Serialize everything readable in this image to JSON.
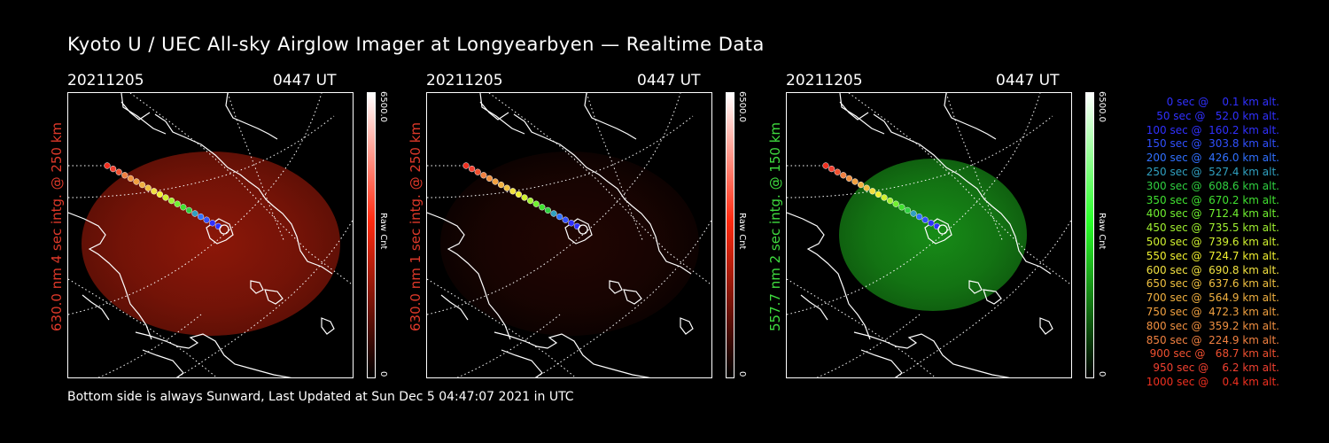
{
  "title": "Kyoto U / UEC All-sky Airglow Imager at Longyearbyen — Realtime Data",
  "footer": "Bottom side is always Sunward, Last Updated at Sun Dec  5 04:47:07 2021 in UTC",
  "panels": [
    {
      "date": "20211205",
      "time": "0447 UT",
      "label": "630.0 nm 4 sec intg. @ 250 km",
      "label_color": "#e0392a",
      "cbar_max": "6500.0",
      "cbar_min": "0",
      "cbar_unit": "Raw Cnt",
      "color": "#ff2a10",
      "intensity": "strong"
    },
    {
      "date": "20211205",
      "time": "0447 UT",
      "label": "630.0 nm 1 sec intg. @ 250 km",
      "label_color": "#e0392a",
      "cbar_max": "6500.0",
      "cbar_min": "0",
      "cbar_unit": "Raw Cnt",
      "color": "#ff2a10",
      "intensity": "faint"
    },
    {
      "date": "20211205",
      "time": "0447 UT",
      "label": "557.7 nm 2 sec intg. @ 150 km",
      "label_color": "#3fdc3f",
      "cbar_max": "6500.0",
      "cbar_min": "0",
      "cbar_unit": "Raw Cnt",
      "color": "#2aff2a",
      "intensity": "strong"
    }
  ],
  "chart_data": {
    "type": "table",
    "title": "Kyoto U / UEC All-sky Airglow Imager at Longyearbyen — Realtime Data",
    "trajectory_legend": [
      {
        "text": "   0 sec @    0.1 km alt.",
        "color": "#3030ff"
      },
      {
        "text": "  50 sec @   52.0 km alt.",
        "color": "#3030ff"
      },
      {
        "text": " 100 sec @  160.2 km alt.",
        "color": "#3030ff"
      },
      {
        "text": " 150 sec @  303.8 km alt.",
        "color": "#3050ff"
      },
      {
        "text": " 200 sec @  426.0 km alt.",
        "color": "#3070ff"
      },
      {
        "text": " 250 sec @  527.4 km alt.",
        "color": "#30a0c0"
      },
      {
        "text": " 300 sec @  608.6 km alt.",
        "color": "#30d040"
      },
      {
        "text": " 350 sec @  670.2 km alt.",
        "color": "#40e030"
      },
      {
        "text": " 400 sec @  712.4 km alt.",
        "color": "#70f030"
      },
      {
        "text": " 450 sec @  735.5 km alt.",
        "color": "#a0f030"
      },
      {
        "text": " 500 sec @  739.6 km alt.",
        "color": "#d0f030"
      },
      {
        "text": " 550 sec @  724.7 km alt.",
        "color": "#f0f030"
      },
      {
        "text": " 600 sec @  690.8 km alt.",
        "color": "#f0e040"
      },
      {
        "text": " 650 sec @  637.6 km alt.",
        "color": "#f0c040"
      },
      {
        "text": " 700 sec @  564.9 km alt.",
        "color": "#f0b040"
      },
      {
        "text": " 750 sec @  472.3 km alt.",
        "color": "#f0a040"
      },
      {
        "text": " 800 sec @  359.2 km alt.",
        "color": "#f09040"
      },
      {
        "text": " 850 sec @  224.9 km alt.",
        "color": "#f08040"
      },
      {
        "text": " 900 sec @   68.7 km alt.",
        "color": "#f05030"
      },
      {
        "text": " 950 sec @    6.2 km alt.",
        "color": "#f04030"
      },
      {
        "text": "1000 sec @    0.4 km alt.",
        "color": "#f03020"
      }
    ],
    "colorbar": {
      "min": 0,
      "max": 6500,
      "label": "Raw Cnt"
    }
  }
}
